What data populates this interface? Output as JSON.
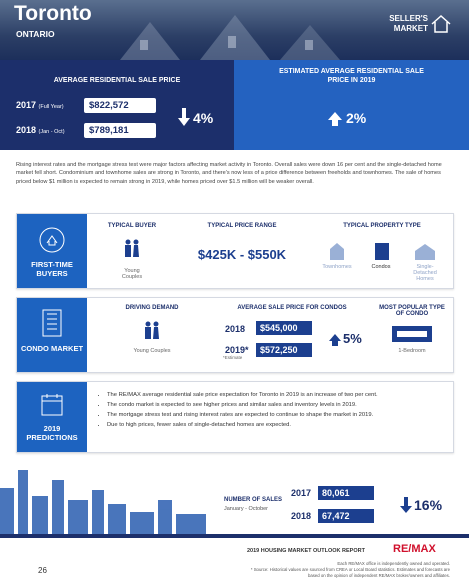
{
  "header": {
    "city": "Toronto",
    "province": "ONTARIO",
    "market": "SELLER'S MARKET"
  },
  "average_price": {
    "title": "AVERAGE RESIDENTIAL SALE PRICE",
    "rows": [
      {
        "year": "2017",
        "period": "(Full Year)",
        "price": "$822,572"
      },
      {
        "year": "2018",
        "period": "(Jan - Oct)",
        "price": "$789,181"
      }
    ],
    "change": "4%"
  },
  "estimate": {
    "title": "ESTIMATED AVERAGE RESIDENTIAL SALE PRICE IN 2019",
    "change": "2%"
  },
  "summary": "Rising interest rates and the mortgage stress test were major factors affecting market activity in Toronto. Overall sales were down 16 per cent and the single-detached home market fell short. Condominium and townhome sales are strong in Toronto, and there's now less of a price difference between freeholds and townhomes. The sale of homes priced below $1 million is expected to remain strong in 2019, while homes priced over $1.5 million will be weaker overall.",
  "first_time_buyers": {
    "label": "FIRST-TIME BUYERS",
    "buyer_heading": "TYPICAL BUYER",
    "buyer": "Young Couples",
    "price_heading": "TYPICAL PRICE RANGE",
    "price_range": "$425K - $550K",
    "property_heading": "TYPICAL PROPERTY TYPE",
    "property_types": [
      "Townhomes",
      "Condos",
      "Single-Detached Homes"
    ]
  },
  "condo_market": {
    "label": "CONDO MARKET",
    "demand_heading": "DRIVING DEMAND",
    "demand": "Young Couples",
    "price_heading": "AVERAGE SALE PRICE FOR CONDOS",
    "rows": [
      {
        "year": "2018",
        "price": "$545,000"
      },
      {
        "year": "2019*",
        "price": "$572,250"
      }
    ],
    "estimate_note": "*Estimate",
    "change": "5%",
    "popular_heading": "MOST POPULAR TYPE OF CONDO",
    "popular": "1-Bedroom"
  },
  "predictions": {
    "label": "2019 PREDICTIONS",
    "items": [
      "The RE/MAX average residential sale price expectation for Toronto in 2019 is an increase of two per cent.",
      "The condo market is expected to see higher prices and similar sales and inventory levels in 2019.",
      "The mortgage stress test and rising interest rates are expected to continue to shape the market in 2019.",
      "Due to high prices, fewer sales of single-detached homes are expected."
    ]
  },
  "sales": {
    "title": "NUMBER OF SALES",
    "period": "January - October",
    "rows": [
      {
        "year": "2017",
        "value": "80,061"
      },
      {
        "year": "2018",
        "value": "67,472"
      }
    ],
    "change": "16%"
  },
  "footer": {
    "report": "2019 HOUSING MARKET OUTLOOK REPORT",
    "brand": "RE/MAX",
    "notes": [
      "Each RE/MAX office is independently owned and operated.",
      "* Source: Historical values are sourced from CREA or Local Board statistics. Estimates and forecasts are based on the opinion of independent RE/MAX broker/owners and affiliates."
    ],
    "page": "26"
  }
}
